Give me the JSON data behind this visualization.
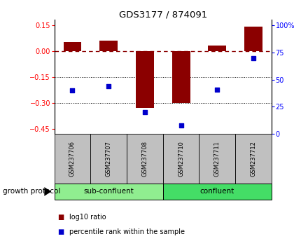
{
  "title": "GDS3177 / 874091",
  "samples": [
    "GSM237706",
    "GSM237707",
    "GSM237708",
    "GSM237710",
    "GSM237711",
    "GSM237712"
  ],
  "log10_ratio": [
    0.05,
    0.06,
    -0.33,
    -0.3,
    0.03,
    0.14
  ],
  "percentile_rank": [
    40,
    44,
    20,
    8,
    41,
    70
  ],
  "group_label": "growth protocol",
  "group_info": [
    {
      "label": "sub-confluent",
      "start": 0,
      "end": 2,
      "color": "#90EE90"
    },
    {
      "label": "confluent",
      "start": 3,
      "end": 5,
      "color": "#44DD66"
    }
  ],
  "ylim_left": [
    -0.48,
    0.18
  ],
  "ylim_right": [
    0,
    105
  ],
  "yticks_left": [
    -0.45,
    -0.3,
    -0.15,
    0.0,
    0.15
  ],
  "yticks_right": [
    0,
    25,
    50,
    75,
    100
  ],
  "hlines": [
    -0.15,
    -0.3
  ],
  "bar_color": "#8B0000",
  "scatter_color": "#0000CC",
  "dashed_line_y": 0.0,
  "bar_width": 0.5,
  "sample_box_color": "#C0C0C0",
  "legend_bar_label": "log10 ratio",
  "legend_scatter_label": "percentile rank within the sample"
}
